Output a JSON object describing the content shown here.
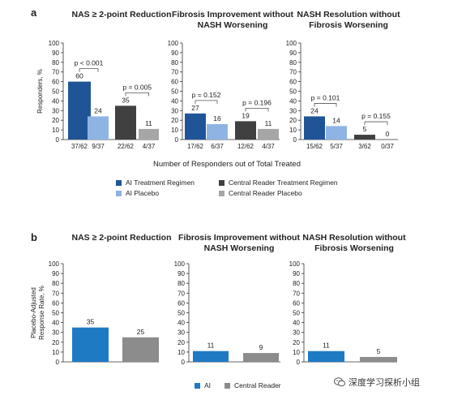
{
  "figure": {
    "panel_a_label": "a",
    "panel_b_label": "b",
    "panel_a_xaxis_note": "Number of Responders out of Total Treated",
    "watermark_text": "深度学习探析小组"
  },
  "colors": {
    "ai_treatment": "#1f5597",
    "ai_placebo": "#8eb4e3",
    "central_treatment": "#404040",
    "central_placebo": "#a6a6a6",
    "ai": "#1f7ac4",
    "central": "#8c8c8c"
  },
  "legend_a": [
    {
      "label": "AI Treatment Regimen",
      "color": "#1f5597"
    },
    {
      "label": "Central Reader Treatment Regimen",
      "color": "#404040"
    },
    {
      "label": "AI Placebo",
      "color": "#8eb4e3"
    },
    {
      "label": "Central Reader Placebo",
      "color": "#a6a6a6"
    }
  ],
  "legend_b": [
    {
      "label": "AI",
      "color": "#1f7ac4"
    },
    {
      "label": "Central Reader",
      "color": "#8c8c8c"
    }
  ],
  "chart_data": [
    {
      "type": "bar",
      "panel": "a",
      "title": "NAS ≥ 2-point Reduction",
      "ylabel": "Responders, %",
      "ylim": [
        0,
        100
      ],
      "yticks": [
        0,
        10,
        20,
        30,
        40,
        50,
        60,
        70,
        80,
        90,
        100
      ],
      "categories": [
        "37/62",
        "9/37",
        "22/62",
        "4/37"
      ],
      "values": [
        60,
        24,
        35,
        11
      ],
      "bar_colors": [
        "#1f5597",
        "#8eb4e3",
        "#404040",
        "#a6a6a6"
      ],
      "comparisons": [
        {
          "bars": [
            0,
            1
          ],
          "label": "p < 0.001"
        },
        {
          "bars": [
            2,
            3
          ],
          "label": "p = 0.005"
        }
      ]
    },
    {
      "type": "bar",
      "panel": "a",
      "title": "Fibrosis Improvement without NASH Worsening",
      "ylabel": "",
      "ylim": [
        0,
        100
      ],
      "yticks": [
        0,
        10,
        20,
        30,
        40,
        50,
        60,
        70,
        80,
        90,
        100
      ],
      "categories": [
        "17/62",
        "6/37",
        "12/62",
        "4/37"
      ],
      "values": [
        27,
        16,
        19,
        11
      ],
      "bar_colors": [
        "#1f5597",
        "#8eb4e3",
        "#404040",
        "#a6a6a6"
      ],
      "comparisons": [
        {
          "bars": [
            0,
            1
          ],
          "label": "p = 0.152"
        },
        {
          "bars": [
            2,
            3
          ],
          "label": "p = 0.196"
        }
      ]
    },
    {
      "type": "bar",
      "panel": "a",
      "title": "NASH Resolution without Fibrosis Worsening",
      "ylabel": "",
      "ylim": [
        0,
        100
      ],
      "yticks": [
        0,
        10,
        20,
        30,
        40,
        50,
        60,
        70,
        80,
        90,
        100
      ],
      "categories": [
        "15/62",
        "5/37",
        "3/62",
        "0/37"
      ],
      "values": [
        24,
        14,
        5,
        0
      ],
      "bar_colors": [
        "#1f5597",
        "#8eb4e3",
        "#404040",
        "#a6a6a6"
      ],
      "comparisons": [
        {
          "bars": [
            0,
            1
          ],
          "label": "p = 0.101"
        },
        {
          "bars": [
            2,
            3
          ],
          "label": "p = 0.155"
        }
      ]
    },
    {
      "type": "bar",
      "panel": "b",
      "title": "NAS ≥ 2-point Reduction",
      "ylabel": "Placebo-Adjusted Response Rate, %",
      "ylim": [
        0,
        100
      ],
      "yticks": [
        0,
        10,
        20,
        30,
        40,
        50,
        60,
        70,
        80,
        90,
        100
      ],
      "categories": [
        "AI",
        "Central Reader"
      ],
      "values": [
        35,
        25
      ],
      "bar_colors": [
        "#1f7ac4",
        "#8c8c8c"
      ],
      "comparisons": []
    },
    {
      "type": "bar",
      "panel": "b",
      "title": "Fibrosis Improvement without NASH Worsening",
      "ylabel": "",
      "ylim": [
        0,
        100
      ],
      "yticks": [
        0,
        10,
        20,
        30,
        40,
        50,
        60,
        70,
        80,
        90,
        100
      ],
      "categories": [
        "AI",
        "Central Reader"
      ],
      "values": [
        11,
        9
      ],
      "bar_colors": [
        "#1f7ac4",
        "#8c8c8c"
      ],
      "comparisons": []
    },
    {
      "type": "bar",
      "panel": "b",
      "title": "NASH Resolution without Fibrosis Worsening",
      "ylabel": "",
      "ylim": [
        0,
        100
      ],
      "yticks": [
        0,
        10,
        20,
        30,
        40,
        50,
        60,
        70,
        80,
        90,
        100
      ],
      "categories": [
        "AI",
        "Central Reader"
      ],
      "values": [
        11,
        5
      ],
      "bar_colors": [
        "#1f7ac4",
        "#8c8c8c"
      ],
      "comparisons": []
    }
  ]
}
